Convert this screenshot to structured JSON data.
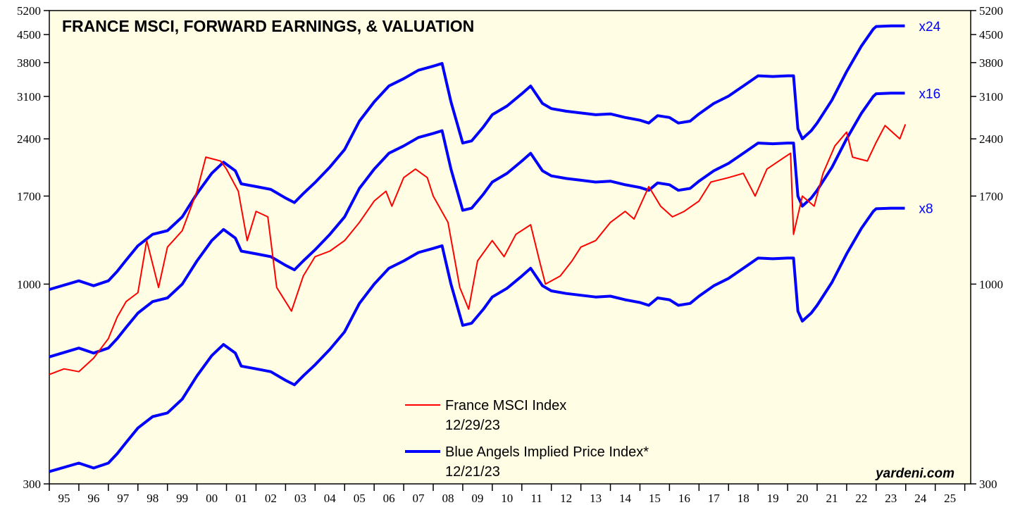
{
  "chart_data": {
    "type": "line",
    "title": "FRANCE MSCI, FORWARD EARNINGS, & VALUATION",
    "source": "yardeni.com",
    "log_scale": true,
    "background": "#fffde3",
    "xlim": [
      1995,
      2026.2
    ],
    "xticks": [
      1995,
      1996,
      1997,
      1998,
      1999,
      2000,
      2001,
      2002,
      2003,
      2004,
      2005,
      2006,
      2007,
      2008,
      2009,
      2010,
      2011,
      2012,
      2013,
      2014,
      2015,
      2016,
      2017,
      2018,
      2019,
      2020,
      2021,
      2022,
      2023,
      2024,
      2025,
      2026
    ],
    "xlabels": [
      {
        "value": 1995.5,
        "label": "95"
      },
      {
        "value": 1996.5,
        "label": "96"
      },
      {
        "value": 1997.5,
        "label": "97"
      },
      {
        "value": 1998.5,
        "label": "98"
      },
      {
        "value": 1999.5,
        "label": "99"
      },
      {
        "value": 2000.5,
        "label": "00"
      },
      {
        "value": 2001.5,
        "label": "01"
      },
      {
        "value": 2002.5,
        "label": "02"
      },
      {
        "value": 2003.5,
        "label": "03"
      },
      {
        "value": 2004.5,
        "label": "04"
      },
      {
        "value": 2005.5,
        "label": "05"
      },
      {
        "value": 2006.5,
        "label": "06"
      },
      {
        "value": 2007.5,
        "label": "07"
      },
      {
        "value": 2008.5,
        "label": "08"
      },
      {
        "value": 2009.5,
        "label": "09"
      },
      {
        "value": 2010.5,
        "label": "10"
      },
      {
        "value": 2011.5,
        "label": "11"
      },
      {
        "value": 2012.5,
        "label": "12"
      },
      {
        "value": 2013.5,
        "label": "13"
      },
      {
        "value": 2014.5,
        "label": "14"
      },
      {
        "value": 2015.5,
        "label": "15"
      },
      {
        "value": 2016.5,
        "label": "16"
      },
      {
        "value": 2017.5,
        "label": "17"
      },
      {
        "value": 2018.5,
        "label": "18"
      },
      {
        "value": 2019.5,
        "label": "19"
      },
      {
        "value": 2020.5,
        "label": "20"
      },
      {
        "value": 2021.5,
        "label": "21"
      },
      {
        "value": 2022.5,
        "label": "22"
      },
      {
        "value": 2023.5,
        "label": "23"
      },
      {
        "value": 2024.5,
        "label": "24"
      },
      {
        "value": 2025.5,
        "label": "25"
      }
    ],
    "ylim": [
      300,
      5200
    ],
    "yticks": [
      300,
      1000,
      1700,
      2400,
      3100,
      3800,
      4500,
      5200
    ],
    "y2lim": [
      300,
      5200
    ],
    "y2ticks": [
      300,
      1000,
      1700,
      2400,
      3100,
      3800,
      4500,
      5200
    ],
    "legend": [
      {
        "label": "France MSCI Index",
        "date": "12/29/23",
        "color": "#ff0000"
      },
      {
        "label": "Blue Angels Implied Price Index*",
        "date": "12/21/23",
        "color": "#0000ff"
      }
    ],
    "series": [
      {
        "name": "x24",
        "color": "#0000ff",
        "x": [
          1995.0,
          1996.0,
          1996.5,
          1997.0,
          1997.3,
          1997.6,
          1998.0,
          1998.5,
          1999.0,
          1999.5,
          2000.0,
          2000.5,
          2000.9,
          2001.3,
          2001.5,
          2002.0,
          2002.5,
          2003.0,
          2003.3,
          2003.6,
          2004.0,
          2004.5,
          2005.0,
          2005.5,
          2006.0,
          2006.5,
          2007.0,
          2007.5,
          2008.0,
          2008.3,
          2008.6,
          2009.0,
          2009.3,
          2009.7,
          2010.0,
          2010.5,
          2011.0,
          2011.3,
          2011.7,
          2012.0,
          2012.5,
          2013.0,
          2013.5,
          2014.0,
          2014.5,
          2015.0,
          2015.3,
          2015.6,
          2016.0,
          2016.3,
          2016.7,
          2017.0,
          2017.5,
          2018.0,
          2018.5,
          2019.0,
          2019.5,
          2020.0,
          2020.2,
          2020.35,
          2020.5,
          2020.8,
          2021.0,
          2021.5,
          2022.0,
          2022.5,
          2022.9,
          2023.0,
          2023.5,
          2023.97
        ],
        "values": [
          968,
          1020,
          990,
          1020,
          1080,
          1155,
          1260,
          1350,
          1380,
          1500,
          1725,
          1950,
          2085,
          1980,
          1830,
          1800,
          1770,
          1680,
          1635,
          1725,
          1845,
          2025,
          2250,
          2670,
          3000,
          3300,
          3450,
          3630,
          3720,
          3780,
          3000,
          2340,
          2370,
          2580,
          2775,
          2925,
          3150,
          3300,
          2970,
          2880,
          2835,
          2805,
          2775,
          2790,
          2730,
          2685,
          2640,
          2760,
          2730,
          2640,
          2670,
          2790,
          2970,
          3105,
          3300,
          3510,
          3495,
          3510,
          3510,
          2550,
          2400,
          2520,
          2640,
          3030,
          3600,
          4200,
          4650,
          4725,
          4740,
          4740
        ]
      },
      {
        "name": "x16",
        "color": "#0000ff",
        "x": [
          1995.0,
          1996.0,
          1996.5,
          1997.0,
          1997.3,
          1997.6,
          1998.0,
          1998.5,
          1999.0,
          1999.5,
          2000.0,
          2000.5,
          2000.9,
          2001.3,
          2001.5,
          2002.0,
          2002.5,
          2003.0,
          2003.3,
          2003.6,
          2004.0,
          2004.5,
          2005.0,
          2005.5,
          2006.0,
          2006.5,
          2007.0,
          2007.5,
          2008.0,
          2008.3,
          2008.6,
          2009.0,
          2009.3,
          2009.7,
          2010.0,
          2010.5,
          2011.0,
          2011.3,
          2011.7,
          2012.0,
          2012.5,
          2013.0,
          2013.5,
          2014.0,
          2014.5,
          2015.0,
          2015.3,
          2015.6,
          2016.0,
          2016.3,
          2016.7,
          2017.0,
          2017.5,
          2018.0,
          2018.5,
          2019.0,
          2019.5,
          2020.0,
          2020.2,
          2020.35,
          2020.5,
          2020.8,
          2021.0,
          2021.5,
          2022.0,
          2022.5,
          2022.9,
          2023.0,
          2023.5,
          2023.97
        ],
        "values": [
          645,
          680,
          660,
          680,
          720,
          770,
          840,
          900,
          920,
          1000,
          1150,
          1300,
          1390,
          1320,
          1220,
          1200,
          1180,
          1120,
          1090,
          1150,
          1230,
          1350,
          1500,
          1780,
          2000,
          2200,
          2300,
          2420,
          2480,
          2520,
          2000,
          1560,
          1580,
          1720,
          1850,
          1950,
          2100,
          2200,
          1980,
          1920,
          1890,
          1870,
          1850,
          1860,
          1820,
          1790,
          1760,
          1840,
          1820,
          1760,
          1780,
          1860,
          1980,
          2070,
          2200,
          2340,
          2330,
          2340,
          2340,
          1700,
          1600,
          1680,
          1760,
          2020,
          2400,
          2800,
          3100,
          3150,
          3160,
          3160
        ]
      },
      {
        "name": "x8",
        "color": "#0000ff",
        "x": [
          1995.0,
          1996.0,
          1996.5,
          1997.0,
          1997.3,
          1997.6,
          1998.0,
          1998.5,
          1999.0,
          1999.5,
          2000.0,
          2000.5,
          2000.9,
          2001.3,
          2001.5,
          2002.0,
          2002.5,
          2003.0,
          2003.3,
          2003.6,
          2004.0,
          2004.5,
          2005.0,
          2005.5,
          2006.0,
          2006.5,
          2007.0,
          2007.5,
          2008.0,
          2008.3,
          2008.6,
          2009.0,
          2009.3,
          2009.7,
          2010.0,
          2010.5,
          2011.0,
          2011.3,
          2011.7,
          2012.0,
          2012.5,
          2013.0,
          2013.5,
          2014.0,
          2014.5,
          2015.0,
          2015.3,
          2015.6,
          2016.0,
          2016.3,
          2016.7,
          2017.0,
          2017.5,
          2018.0,
          2018.5,
          2019.0,
          2019.5,
          2020.0,
          2020.2,
          2020.35,
          2020.5,
          2020.8,
          2021.0,
          2021.5,
          2022.0,
          2022.5,
          2022.9,
          2023.0,
          2023.5,
          2023.97
        ],
        "values": [
          323,
          340,
          330,
          340,
          360,
          385,
          420,
          450,
          460,
          500,
          575,
          650,
          695,
          660,
          610,
          600,
          590,
          560,
          545,
          575,
          615,
          675,
          750,
          890,
          1000,
          1100,
          1150,
          1210,
          1240,
          1260,
          1000,
          780,
          790,
          860,
          925,
          975,
          1050,
          1100,
          990,
          960,
          945,
          935,
          925,
          930,
          910,
          895,
          880,
          920,
          910,
          880,
          890,
          930,
          990,
          1035,
          1100,
          1170,
          1165,
          1170,
          1170,
          850,
          800,
          840,
          880,
          1010,
          1200,
          1400,
          1550,
          1575,
          1580,
          1580
        ]
      },
      {
        "name": "France MSCI Index",
        "color": "#ff0000",
        "x": [
          1995.0,
          1995.5,
          1996.0,
          1996.5,
          1997.0,
          1997.3,
          1997.6,
          1998.0,
          1998.3,
          1998.7,
          1999.0,
          1999.5,
          2000.0,
          2000.3,
          2000.8,
          2001.0,
          2001.4,
          2001.7,
          2002.0,
          2002.4,
          2002.7,
          2003.2,
          2003.6,
          2004.0,
          2004.5,
          2005.0,
          2005.5,
          2006.0,
          2006.4,
          2006.6,
          2007.0,
          2007.4,
          2007.8,
          2008.0,
          2008.5,
          2008.9,
          2009.2,
          2009.5,
          2010.0,
          2010.4,
          2010.8,
          2011.3,
          2011.6,
          2011.8,
          2012.3,
          2012.7,
          2013.0,
          2013.5,
          2014.0,
          2014.5,
          2014.8,
          2015.3,
          2015.7,
          2016.1,
          2016.5,
          2017.0,
          2017.4,
          2018.0,
          2018.5,
          2018.9,
          2019.3,
          2019.9,
          2020.1,
          2020.2,
          2020.5,
          2020.9,
          2021.2,
          2021.6,
          2022.0,
          2022.2,
          2022.7,
          2023.0,
          2023.3,
          2023.8,
          2023.99
        ],
        "values": [
          580,
          600,
          590,
          640,
          720,
          820,
          900,
          950,
          1300,
          980,
          1250,
          1380,
          1750,
          2150,
          2100,
          2000,
          1750,
          1300,
          1550,
          1500,
          980,
          850,
          1050,
          1180,
          1220,
          1300,
          1450,
          1650,
          1750,
          1600,
          1900,
          2000,
          1900,
          1700,
          1450,
          980,
          860,
          1150,
          1300,
          1180,
          1350,
          1430,
          1150,
          1000,
          1050,
          1150,
          1250,
          1300,
          1450,
          1550,
          1480,
          1800,
          1600,
          1500,
          1550,
          1650,
          1850,
          1900,
          1950,
          1700,
          2000,
          2150,
          2200,
          1350,
          1700,
          1600,
          1950,
          2300,
          2500,
          2150,
          2100,
          2350,
          2600,
          2400,
          2620
        ]
      }
    ]
  }
}
